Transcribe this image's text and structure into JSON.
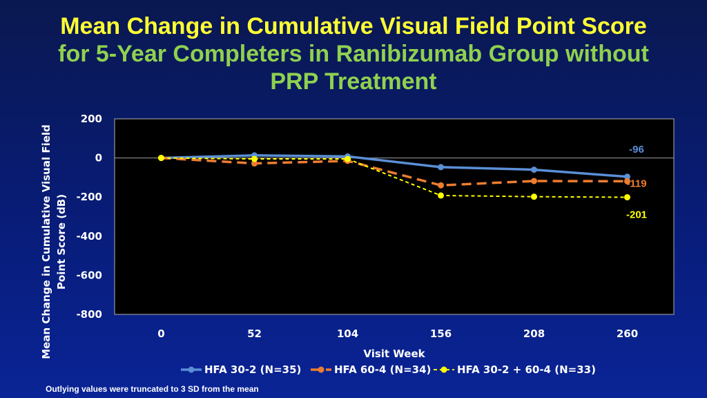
{
  "chart_data": {
    "type": "line",
    "title_line1": "Mean Change in Cumulative Visual Field Point Score",
    "title_line2": "for 5-Year Completers in Ranibizumab Group without",
    "title_line3": "PRP Treatment",
    "xlabel": "Visit Week",
    "ylabel": "Mean Change in Cumulative Visual Field Point Score (dB)",
    "ylabel_line1": "Mean Change in Cumulative Visual Field",
    "ylabel_line2": "Point Score (dB)",
    "x": [
      0,
      52,
      104,
      156,
      208,
      260
    ],
    "x_ticks": [
      "0",
      "52",
      "104",
      "156",
      "208",
      "260"
    ],
    "y_ticks": [
      "200",
      "0",
      "-200",
      "-400",
      "-600",
      "-800"
    ],
    "ylim": [
      -800,
      200
    ],
    "grid": false,
    "legend_position": "bottom",
    "series": [
      {
        "name": "HFA 30-2 (N=35)",
        "values": [
          0,
          13,
          8,
          -47,
          -60,
          -96
        ],
        "color": "#5b8fd6",
        "style": "solid",
        "end_label": "-96",
        "end_label_color": "#5b8fd6"
      },
      {
        "name": "HFA 60-4 (N=34)",
        "values": [
          0,
          -28,
          -15,
          -140,
          -118,
          -119
        ],
        "color": "#ed7d31",
        "style": "dashed",
        "end_label": "-119",
        "end_label_color": "#ed7d31"
      },
      {
        "name": "HFA 30-2 + 60-4 (N=33)",
        "values": [
          0,
          -5,
          -5,
          -192,
          -198,
          -201
        ],
        "color": "#ffff00",
        "style": "dotted",
        "end_label": "-201",
        "end_label_color": "#ffff00"
      }
    ]
  },
  "footnote": "Outlying values were truncated to 3 SD from the mean"
}
